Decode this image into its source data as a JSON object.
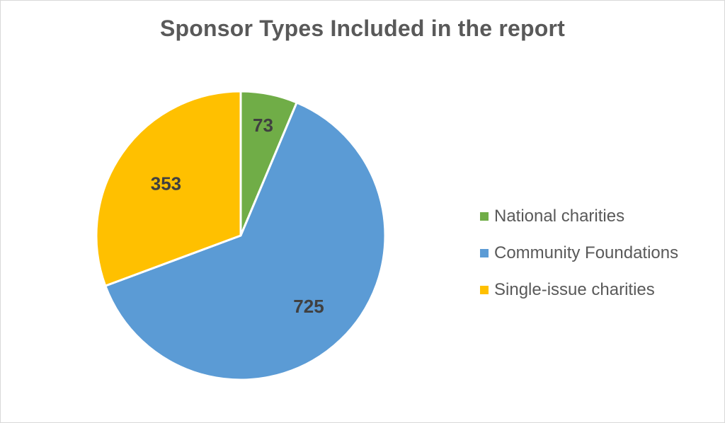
{
  "chart_data": {
    "type": "pie",
    "title": "Sponsor Types Included in the report",
    "categories": [
      "National charities",
      "Community Foundations",
      "Single-issue charities"
    ],
    "values": [
      73,
      725,
      353
    ],
    "data_labels": [
      "73",
      "725",
      "353"
    ],
    "colors": [
      "#70ad47",
      "#5b9bd5",
      "#ffc000"
    ],
    "legend_position": "right"
  },
  "legend": {
    "items": [
      {
        "label": "National charities",
        "color": "#70ad47"
      },
      {
        "label": "Community Foundations",
        "color": "#5b9bd5"
      },
      {
        "label": "Single-issue charities",
        "color": "#ffc000"
      }
    ]
  }
}
